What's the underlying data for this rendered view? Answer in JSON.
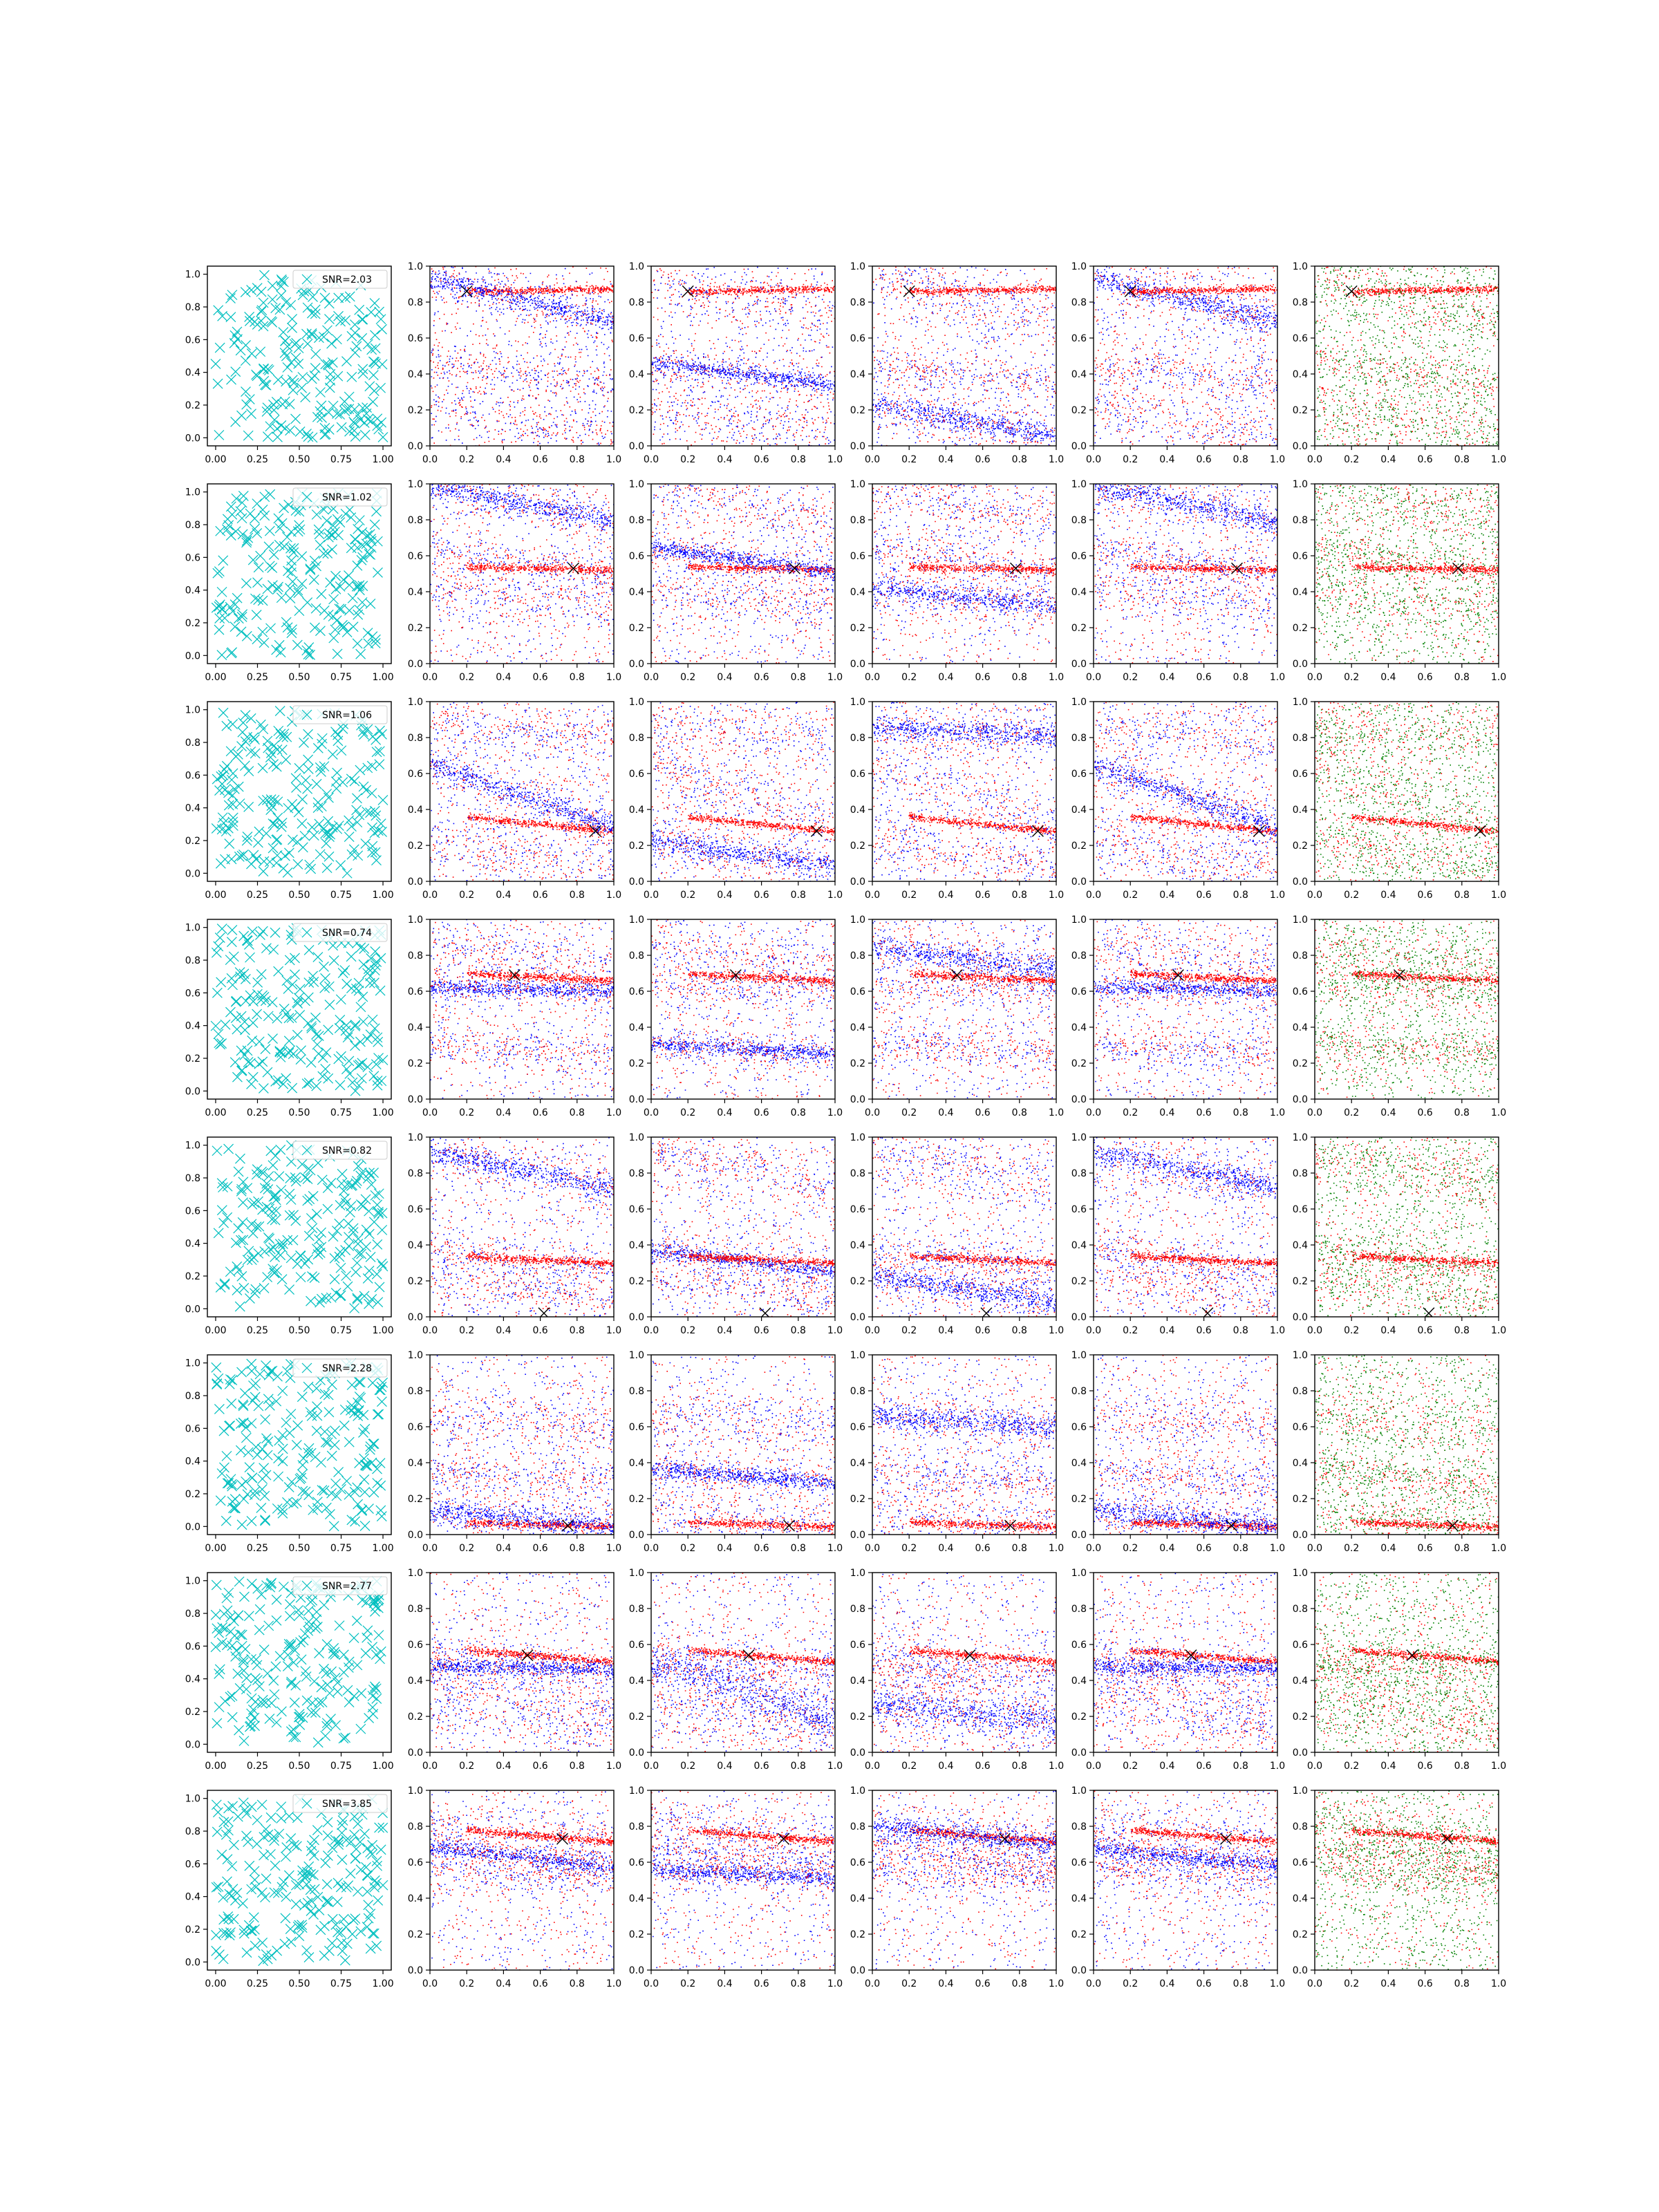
{
  "chart_data": {
    "type": "scatter",
    "layout": {
      "rows": 8,
      "cols": 6
    },
    "grid": false,
    "legend_placement": "upper right",
    "colors": {
      "legend_marker": "#00bfbf",
      "red": "#ff0000",
      "blue": "#0000ff",
      "green": "#008000",
      "target_marker": "#000000"
    },
    "axes": {
      "first_col": {
        "xlim": [
          0,
          1
        ],
        "ylim": [
          0,
          1
        ],
        "xticks": [
          "0.00",
          "0.25",
          "0.50",
          "0.75",
          "1.00"
        ],
        "yticks": [
          "0.0",
          "0.2",
          "0.4",
          "0.6",
          "0.8",
          "1.0"
        ]
      },
      "other_cols": {
        "xlim": [
          0,
          1
        ],
        "ylim": [
          0,
          1
        ],
        "xticks": [
          "0.0",
          "0.2",
          "0.4",
          "0.6",
          "0.8",
          "1.0"
        ],
        "yticks": [
          "0.0",
          "0.2",
          "0.4",
          "0.6",
          "0.8",
          "1.0"
        ]
      }
    },
    "panel_colors": [
      "cyan-x",
      "red-blue",
      "red-blue",
      "red-blue",
      "red-blue",
      "red-green"
    ],
    "rows": [
      {
        "legend": "SNR=2.03",
        "target": [
          0.2,
          0.86
        ],
        "bands": [
          [
            0.89,
            -0.25,
            0.03
          ],
          [
            0.44,
            -0.12,
            0.02
          ],
          [
            0.2,
            -0.18,
            0.03
          ],
          [
            0.86,
            0.02,
            0.01
          ]
        ]
      },
      {
        "legend": "SNR=1.02",
        "target": [
          0.78,
          0.53
        ],
        "bands": [
          [
            0.95,
            -0.2,
            0.03
          ],
          [
            0.62,
            -0.14,
            0.02
          ],
          [
            0.4,
            -0.1,
            0.03
          ],
          [
            0.54,
            -0.02,
            0.01
          ]
        ]
      },
      {
        "legend": "SNR=1.06",
        "target": [
          0.9,
          0.28
        ],
        "bands": [
          [
            0.58,
            -0.35,
            0.03
          ],
          [
            0.2,
            -0.15,
            0.03
          ],
          [
            0.85,
            -0.05,
            0.03
          ],
          [
            0.36,
            -0.1,
            0.01
          ]
        ]
      },
      {
        "legend": "SNR=0.74",
        "target": [
          0.46,
          0.69
        ],
        "bands": [
          [
            0.62,
            -0.02,
            0.02
          ],
          [
            0.3,
            -0.06,
            0.02
          ],
          [
            0.82,
            -0.12,
            0.03
          ],
          [
            0.7,
            -0.05,
            0.01
          ]
        ]
      },
      {
        "legend": "SNR=0.82",
        "target": [
          0.62,
          0.02
        ],
        "bands": [
          [
            0.88,
            -0.2,
            0.03
          ],
          [
            0.35,
            -0.12,
            0.02
          ],
          [
            0.2,
            -0.15,
            0.03
          ],
          [
            0.34,
            -0.05,
            0.01
          ]
        ]
      },
      {
        "legend": "SNR=2.28",
        "target": [
          0.75,
          0.05
        ],
        "bands": [
          [
            0.12,
            -0.1,
            0.03
          ],
          [
            0.35,
            -0.08,
            0.02
          ],
          [
            0.65,
            -0.08,
            0.03
          ],
          [
            0.07,
            -0.03,
            0.01
          ]
        ]
      },
      {
        "legend": "SNR=2.77",
        "target": [
          0.53,
          0.54
        ],
        "bands": [
          [
            0.48,
            -0.02,
            0.02
          ],
          [
            0.45,
            -0.35,
            0.05
          ],
          [
            0.25,
            -0.1,
            0.04
          ],
          [
            0.57,
            -0.08,
            0.01
          ]
        ]
      },
      {
        "legend": "SNR=3.85",
        "target": [
          0.72,
          0.73
        ],
        "bands": [
          [
            0.66,
            -0.1,
            0.02
          ],
          [
            0.55,
            -0.05,
            0.02
          ],
          [
            0.78,
            -0.1,
            0.03
          ],
          [
            0.78,
            -0.08,
            0.01
          ]
        ]
      }
    ]
  }
}
